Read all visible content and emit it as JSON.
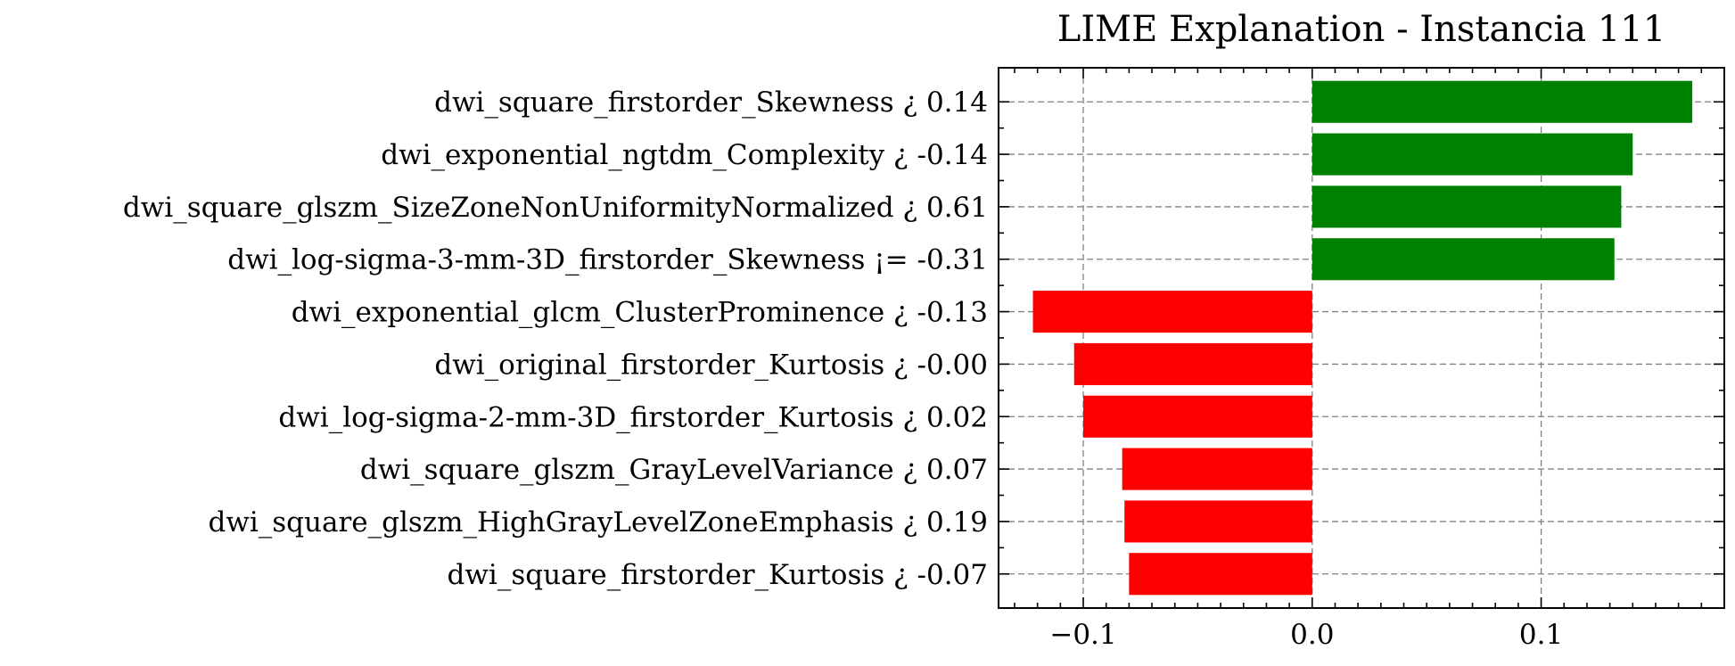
{
  "chart_data": {
    "type": "bar",
    "orientation": "horizontal",
    "title": "LIME Explanation - Instancia 111",
    "xlabel": "",
    "ylabel": "",
    "xlim": [
      -0.137,
      0.18
    ],
    "xticks": [
      -0.1,
      0.0,
      0.1
    ],
    "xtick_labels": [
      "−0.1",
      "0.0",
      "0.1"
    ],
    "grid": true,
    "colors": {
      "positive": "#008000",
      "negative": "#ff0000"
    },
    "categories": [
      "dwi_square_firstorder_Skewness ¿ 0.14",
      "dwi_exponential_ngtdm_Complexity ¿ -0.14",
      "dwi_square_glszm_SizeZoneNonUniformityNormalized ¿ 0.61",
      "dwi_log-sigma-3-mm-3D_firstorder_Skewness ¡= -0.31",
      "dwi_exponential_glcm_ClusterProminence ¿ -0.13",
      "dwi_original_firstorder_Kurtosis ¿ -0.00",
      "dwi_log-sigma-2-mm-3D_firstorder_Kurtosis ¿ 0.02",
      "dwi_square_glszm_GrayLevelVariance ¿ 0.07",
      "dwi_square_glszm_HighGrayLevelZoneEmphasis ¿ 0.19",
      "dwi_square_firstorder_Kurtosis ¿ -0.07"
    ],
    "values": [
      0.166,
      0.14,
      0.135,
      0.132,
      -0.122,
      -0.104,
      -0.1,
      -0.083,
      -0.082,
      -0.08
    ]
  }
}
